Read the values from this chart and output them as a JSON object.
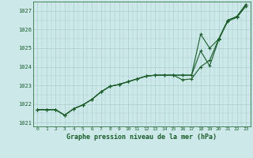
{
  "title": "Graphe pression niveau de la mer (hPa)",
  "background_color": "#cce8e8",
  "grid_color": "#aacfcf",
  "line_color": "#1a5c2a",
  "ylim": [
    1020.8,
    1027.5
  ],
  "xlim": [
    -0.5,
    23.5
  ],
  "yticks": [
    1021,
    1022,
    1023,
    1024,
    1025,
    1026,
    1027
  ],
  "xticks": [
    0,
    1,
    2,
    3,
    4,
    5,
    6,
    7,
    8,
    9,
    10,
    11,
    12,
    13,
    14,
    15,
    16,
    17,
    18,
    19,
    20,
    21,
    22,
    23
  ],
  "line1_x": [
    0,
    1,
    2,
    3,
    4,
    5,
    6,
    7,
    8,
    9,
    10,
    11,
    12,
    13,
    14,
    15,
    16,
    17,
    18,
    19,
    20,
    21,
    22,
    23
  ],
  "line1_y": [
    1021.7,
    1021.7,
    1021.7,
    1021.4,
    1021.75,
    1021.95,
    1022.25,
    1022.65,
    1022.95,
    1023.05,
    1023.2,
    1023.35,
    1023.5,
    1023.55,
    1023.55,
    1023.55,
    1023.55,
    1023.55,
    1024.85,
    1024.05,
    1025.45,
    1026.45,
    1026.65,
    1027.25
  ],
  "line2_x": [
    0,
    1,
    2,
    3,
    4,
    5,
    6,
    7,
    8,
    9,
    10,
    11,
    12,
    13,
    14,
    15,
    16,
    17,
    18,
    19,
    20,
    21,
    22,
    23
  ],
  "line2_y": [
    1021.7,
    1021.7,
    1021.7,
    1021.4,
    1021.75,
    1021.95,
    1022.25,
    1022.65,
    1022.95,
    1023.05,
    1023.2,
    1023.35,
    1023.5,
    1023.55,
    1023.55,
    1023.55,
    1023.55,
    1023.55,
    1025.75,
    1025.0,
    1025.5,
    1026.5,
    1026.7,
    1027.35
  ],
  "line3_x": [
    0,
    1,
    2,
    3,
    4,
    5,
    6,
    7,
    8,
    9,
    10,
    11,
    12,
    13,
    14,
    15,
    16,
    17,
    18,
    19,
    20,
    21,
    22,
    23
  ],
  "line3_y": [
    1021.7,
    1021.7,
    1021.7,
    1021.4,
    1021.75,
    1021.95,
    1022.25,
    1022.65,
    1022.95,
    1023.05,
    1023.2,
    1023.35,
    1023.5,
    1023.55,
    1023.55,
    1023.55,
    1023.3,
    1023.35,
    1024.0,
    1024.35,
    1025.5,
    1026.5,
    1026.7,
    1027.35
  ]
}
